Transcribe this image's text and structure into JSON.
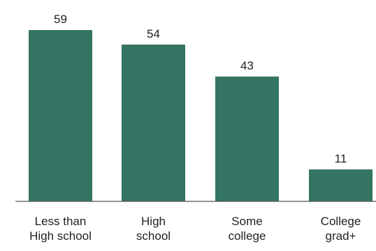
{
  "chart_data": {
    "type": "bar",
    "categories": [
      [
        "Less than",
        "High school"
      ],
      [
        "High",
        "school"
      ],
      [
        "Some",
        "college"
      ],
      [
        "College",
        "grad+"
      ]
    ],
    "values": [
      59,
      54,
      43,
      11
    ],
    "title": "",
    "xlabel": "",
    "ylabel": "",
    "ylim": [
      0,
      59
    ],
    "grid": false,
    "legend": "none",
    "colors": {
      "bar": "#337463",
      "axis": "#555555",
      "text": "#222222"
    }
  }
}
